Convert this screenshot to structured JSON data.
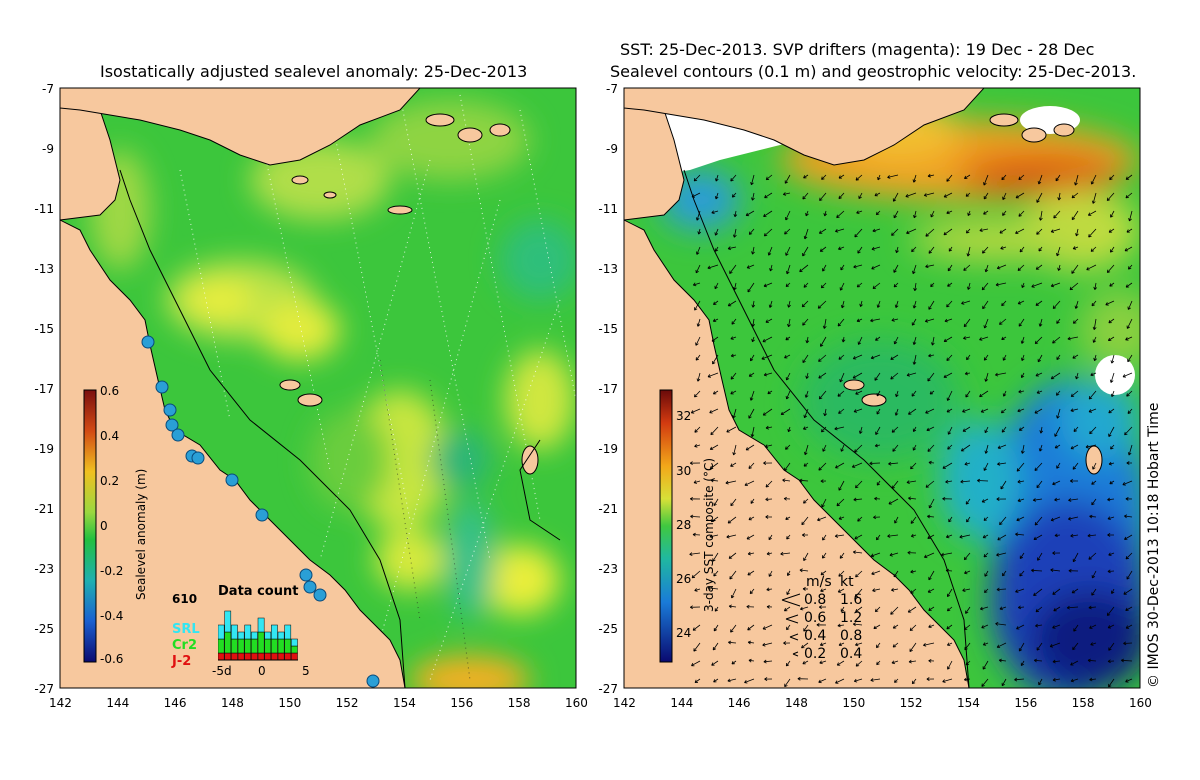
{
  "left_panel": {
    "title": "Isostatically adjusted sealevel anomaly: 25-Dec-2013",
    "colorbar": {
      "label": "Sealevel anomaly (m)",
      "ticks": [
        "0.6",
        "0.4",
        "0.2",
        "0",
        "-0.2",
        "-0.4",
        "-0.6"
      ]
    },
    "data_count": {
      "title": "Data count",
      "count": "610",
      "legend": [
        {
          "name": "SRL",
          "color": "#33e6f2"
        },
        {
          "name": "Cr2",
          "color": "#22dd22"
        },
        {
          "name": "J-2",
          "color": "#e01010"
        }
      ],
      "xticks": [
        "-5d",
        "0",
        "5"
      ],
      "bars": [
        {
          "srl": 2,
          "cr2": 2,
          "j2": 1
        },
        {
          "srl": 3,
          "cr2": 3,
          "j2": 1
        },
        {
          "srl": 2,
          "cr2": 2,
          "j2": 1
        },
        {
          "srl": 1,
          "cr2": 2,
          "j2": 1
        },
        {
          "srl": 2,
          "cr2": 2,
          "j2": 1
        },
        {
          "srl": 1,
          "cr2": 2,
          "j2": 1
        },
        {
          "srl": 2,
          "cr2": 3,
          "j2": 1
        },
        {
          "srl": 1,
          "cr2": 2,
          "j2": 1
        },
        {
          "srl": 2,
          "cr2": 2,
          "j2": 1
        },
        {
          "srl": 1,
          "cr2": 2,
          "j2": 1
        },
        {
          "srl": 2,
          "cr2": 2,
          "j2": 1
        },
        {
          "srl": 1,
          "cr2": 1,
          "j2": 1
        }
      ]
    }
  },
  "right_panel": {
    "title_line1": "SST: 25-Dec-2013. SVP drifters (magenta): 19 Dec - 28 Dec",
    "title_line2": "Sealevel contours (0.1 m) and geostrophic velocity: 25-Dec-2013.",
    "colorbar": {
      "label": "3-day SST composite (°C)",
      "ticks": [
        "32",
        "30",
        "28",
        "26",
        "24"
      ]
    },
    "speed_legend": {
      "header_ms": "m/s",
      "header_kt": "kt",
      "rows": [
        {
          "ms": "0.8",
          "kt": "1.6"
        },
        {
          "ms": "0.6",
          "kt": "1.2"
        },
        {
          "ms": "0.4",
          "kt": "0.8"
        },
        {
          "ms": "0.2",
          "kt": "0.4"
        }
      ]
    }
  },
  "axes": {
    "lat_ticks": [
      "-7",
      "-9",
      "-11",
      "-13",
      "-15",
      "-17",
      "-19",
      "-21",
      "-23",
      "-25",
      "-27"
    ],
    "lon_ticks": [
      "142",
      "144",
      "146",
      "148",
      "150",
      "152",
      "154",
      "156",
      "158",
      "160"
    ]
  },
  "credit": "© IMOS 30-Dec-2013 10:18 Hobart Time",
  "colors": {
    "land": "#f7c89e",
    "sea_base": "#3cc63c",
    "anomaly_high": "#e9ee3a",
    "anomaly_low": "#2fbf7a",
    "sst_warm": "#f39c1a",
    "sst_cool": "#1a7bd8",
    "sst_cold": "#1428a0"
  }
}
